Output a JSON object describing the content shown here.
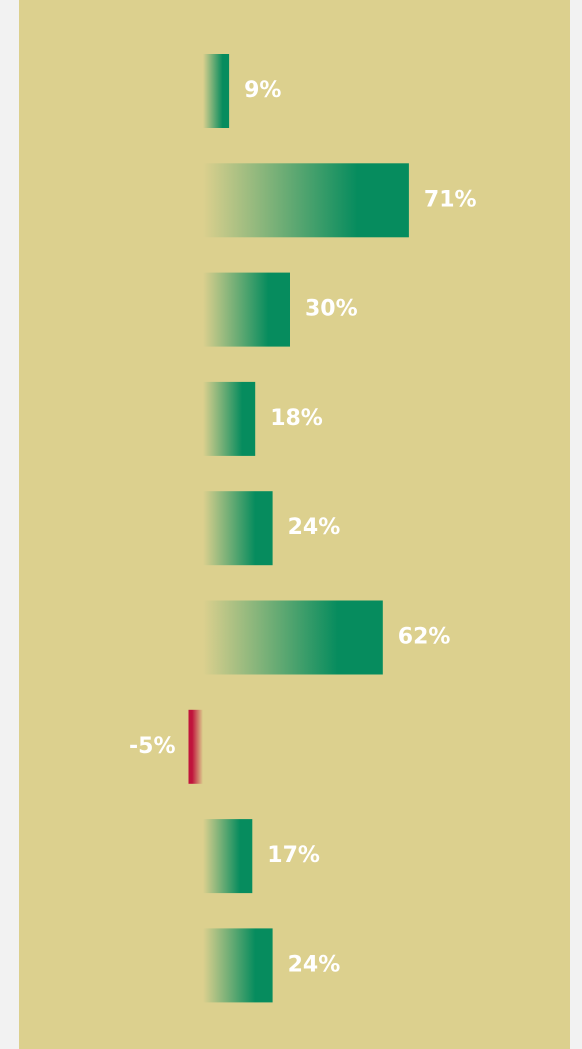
{
  "colors": {
    "background": "#dcd08e",
    "page": "#f2f2f2",
    "positive": "#068c5e",
    "negative": "#c0143c",
    "label": "#ffffff"
  },
  "chart_data": {
    "type": "bar",
    "orientation": "horizontal",
    "categories": [],
    "values": [
      9,
      71,
      30,
      18,
      24,
      62,
      -5,
      17,
      24
    ],
    "labels": [
      "9%",
      "71%",
      "30%",
      "18%",
      "24%",
      "62%",
      "-5%",
      "17%",
      "24%"
    ],
    "title": "",
    "xlabel": "",
    "ylabel": "",
    "grid": false,
    "legend": "none"
  }
}
